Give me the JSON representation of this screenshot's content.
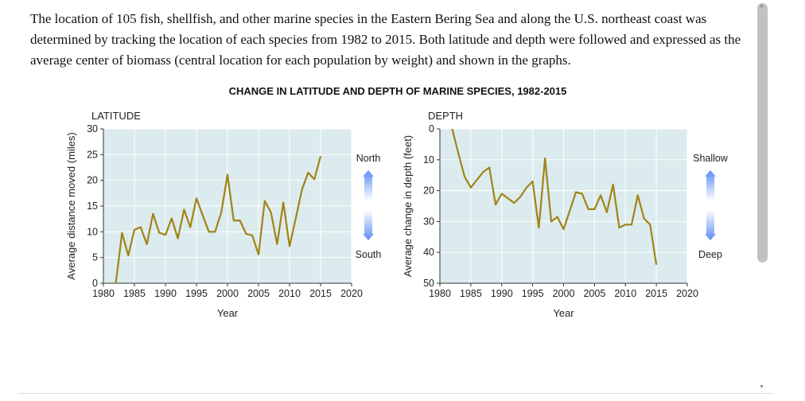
{
  "intro": "The location of 105 fish, shellfish, and other marine species in the Eastern Bering Sea and along the U.S. northeast coast was determined by tracking the location of each species from 1982 to 2015. Both latitude and depth were followed and expressed as the average center of biomass (central location for each population by weight) and shown in the graphs.",
  "title": "CHANGE IN LATITUDE AND DEPTH OF MARINE SPECIES, 1982-2015",
  "colors": {
    "line": "#a08414",
    "plot_bg": "#dcebee",
    "arrow": "#5b8cf5"
  },
  "chart_data": [
    {
      "type": "line",
      "title": "LATITUDE",
      "xlabel": "Year",
      "ylabel": "Average distance moved (miles)",
      "xlim": [
        1980,
        2020
      ],
      "ylim": [
        0,
        30
      ],
      "xticks": [
        1980,
        1985,
        1990,
        1995,
        2000,
        2005,
        2010,
        2015,
        2020
      ],
      "yticks": [
        0,
        5,
        10,
        15,
        20,
        25,
        30
      ],
      "y_inverted": false,
      "grid": true,
      "arrow_labels": {
        "top": "North",
        "bottom": "South"
      },
      "x": [
        1982,
        1983,
        1984,
        1985,
        1986,
        1987,
        1988,
        1989,
        1990,
        1991,
        1992,
        1993,
        1994,
        1995,
        1996,
        1997,
        1998,
        1999,
        2000,
        2001,
        2002,
        2003,
        2004,
        2005,
        2006,
        2007,
        2008,
        2009,
        2010,
        2011,
        2012,
        2013,
        2014,
        2015
      ],
      "values": [
        0,
        9.8,
        5.4,
        10.4,
        10.9,
        7.6,
        13.5,
        9.8,
        9.4,
        12.6,
        8.7,
        14.3,
        10.9,
        16.5,
        13.2,
        10,
        10,
        13.8,
        21.1,
        12.2,
        12.2,
        9.6,
        9.3,
        5.6,
        16,
        13.8,
        7.6,
        15.7,
        7.2,
        12.6,
        18.2,
        21.5,
        20.2,
        24.7
      ]
    },
    {
      "type": "line",
      "title": "DEPTH",
      "xlabel": "Year",
      "ylabel": "Average change in depth (feet)",
      "xlim": [
        1980,
        2020
      ],
      "ylim": [
        0,
        50
      ],
      "xticks": [
        1980,
        1985,
        1990,
        1995,
        2000,
        2005,
        2010,
        2015,
        2020
      ],
      "yticks": [
        0,
        10,
        20,
        30,
        40,
        50
      ],
      "y_inverted": true,
      "grid": true,
      "arrow_labels": {
        "top": "Shallow",
        "bottom": "Deep"
      },
      "x": [
        1982,
        1983,
        1984,
        1985,
        1986,
        1987,
        1988,
        1989,
        1990,
        1991,
        1992,
        1993,
        1994,
        1995,
        1996,
        1997,
        1998,
        1999,
        2000,
        2001,
        2002,
        2003,
        2004,
        2005,
        2006,
        2007,
        2008,
        2009,
        2010,
        2011,
        2012,
        2013,
        2014,
        2015
      ],
      "values": [
        0,
        8,
        15.5,
        19,
        16.5,
        14,
        12.5,
        24.5,
        21,
        22.5,
        24,
        22,
        19,
        17,
        32,
        9.5,
        30,
        28.5,
        32.5,
        26.5,
        20.5,
        21,
        26,
        26,
        21.5,
        27,
        18,
        32,
        31,
        31,
        21.5,
        29,
        31,
        44
      ]
    }
  ]
}
